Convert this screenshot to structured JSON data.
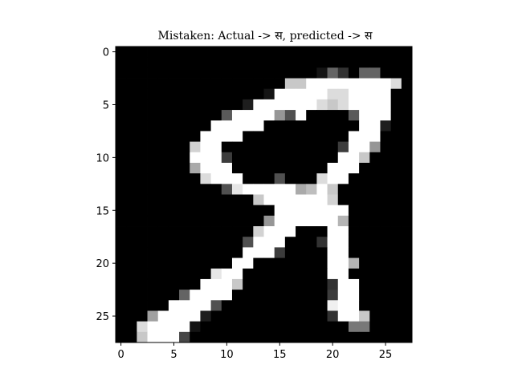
{
  "chart_data": {
    "type": "heatmap",
    "title": "Mistaken: Actual -> स, predicted -> स",
    "colormap": "gray",
    "rows": 28,
    "cols": 28,
    "xlim": [
      -0.5,
      27.5
    ],
    "ylim": [
      27.5,
      -0.5
    ],
    "x_ticks": [
      0,
      5,
      10,
      15,
      20,
      25
    ],
    "y_ticks": [
      0,
      5,
      10,
      15,
      20,
      25
    ],
    "grid": false,
    "pixels": [
      [
        0,
        0,
        0,
        0,
        0,
        0,
        0,
        0,
        0,
        0,
        0,
        0,
        0,
        0,
        0,
        0,
        0,
        0,
        0,
        0,
        0,
        0,
        0,
        0,
        0,
        0,
        0,
        0
      ],
      [
        0,
        0,
        0,
        0,
        0,
        0,
        0,
        0,
        0,
        0,
        0,
        0,
        0,
        0,
        0,
        0,
        0,
        0,
        0,
        0,
        0,
        0,
        0,
        0,
        0,
        0,
        0,
        0
      ],
      [
        0,
        0,
        0,
        0,
        0,
        0,
        0,
        0,
        0,
        0,
        0,
        0,
        0,
        0,
        0,
        0,
        0,
        0,
        0,
        20,
        100,
        50,
        0,
        100,
        100,
        0,
        0,
        0
      ],
      [
        0,
        0,
        0,
        0,
        0,
        0,
        0,
        0,
        0,
        0,
        0,
        0,
        0,
        0,
        0,
        0,
        200,
        200,
        255,
        255,
        255,
        255,
        255,
        255,
        255,
        255,
        220,
        0
      ],
      [
        0,
        0,
        0,
        0,
        0,
        0,
        0,
        0,
        0,
        0,
        0,
        0,
        0,
        0,
        20,
        255,
        255,
        255,
        255,
        255,
        220,
        220,
        255,
        255,
        255,
        255,
        0,
        0
      ],
      [
        0,
        0,
        0,
        0,
        0,
        0,
        0,
        0,
        0,
        0,
        0,
        0,
        30,
        255,
        255,
        255,
        255,
        255,
        255,
        220,
        200,
        220,
        255,
        255,
        255,
        255,
        0,
        0
      ],
      [
        0,
        0,
        0,
        0,
        0,
        0,
        0,
        0,
        0,
        0,
        90,
        255,
        255,
        255,
        255,
        150,
        80,
        255,
        0,
        0,
        0,
        0,
        90,
        255,
        255,
        255,
        0,
        0
      ],
      [
        0,
        0,
        0,
        0,
        0,
        0,
        0,
        0,
        0,
        255,
        255,
        255,
        255,
        255,
        0,
        0,
        0,
        0,
        0,
        0,
        0,
        0,
        0,
        255,
        255,
        30,
        0,
        0
      ],
      [
        0,
        0,
        0,
        0,
        0,
        0,
        0,
        0,
        255,
        255,
        255,
        255,
        0,
        0,
        0,
        0,
        0,
        0,
        0,
        0,
        0,
        0,
        255,
        255,
        255,
        0,
        0,
        0
      ],
      [
        0,
        0,
        0,
        0,
        0,
        0,
        0,
        210,
        255,
        255,
        0,
        0,
        0,
        0,
        0,
        0,
        0,
        0,
        0,
        0,
        0,
        60,
        255,
        255,
        150,
        0,
        0,
        0
      ],
      [
        0,
        0,
        0,
        0,
        0,
        0,
        0,
        255,
        255,
        255,
        60,
        0,
        0,
        0,
        0,
        0,
        0,
        0,
        0,
        0,
        0,
        255,
        255,
        200,
        0,
        0,
        0,
        0
      ],
      [
        0,
        0,
        0,
        0,
        0,
        0,
        0,
        170,
        255,
        255,
        255,
        0,
        0,
        0,
        0,
        0,
        0,
        0,
        0,
        0,
        255,
        255,
        255,
        0,
        0,
        0,
        0,
        0
      ],
      [
        0,
        0,
        0,
        0,
        0,
        0,
        0,
        0,
        220,
        255,
        255,
        255,
        0,
        0,
        0,
        80,
        0,
        0,
        0,
        220,
        255,
        255,
        0,
        0,
        0,
        0,
        0,
        0
      ],
      [
        0,
        0,
        0,
        0,
        0,
        0,
        0,
        0,
        0,
        0,
        80,
        230,
        255,
        255,
        255,
        255,
        255,
        170,
        190,
        255,
        200,
        0,
        0,
        0,
        0,
        0,
        0,
        0
      ],
      [
        0,
        0,
        0,
        0,
        0,
        0,
        0,
        0,
        0,
        0,
        0,
        0,
        0,
        200,
        255,
        255,
        255,
        255,
        255,
        255,
        210,
        0,
        0,
        0,
        0,
        0,
        0,
        0
      ],
      [
        0,
        0,
        0,
        0,
        0,
        0,
        0,
        0,
        0,
        0,
        0,
        0,
        0,
        0,
        0,
        255,
        255,
        255,
        255,
        255,
        255,
        255,
        0,
        0,
        0,
        0,
        0,
        0
      ],
      [
        0,
        0,
        0,
        0,
        0,
        0,
        0,
        0,
        0,
        0,
        0,
        0,
        0,
        0,
        150,
        255,
        255,
        255,
        255,
        255,
        255,
        180,
        0,
        0,
        0,
        0,
        0,
        0
      ],
      [
        0,
        0,
        0,
        0,
        0,
        0,
        0,
        0,
        0,
        0,
        0,
        0,
        0,
        210,
        255,
        255,
        255,
        0,
        0,
        0,
        255,
        255,
        0,
        0,
        0,
        0,
        0,
        0
      ],
      [
        0,
        0,
        0,
        0,
        0,
        0,
        0,
        0,
        0,
        0,
        0,
        0,
        80,
        255,
        255,
        255,
        0,
        0,
        0,
        50,
        255,
        255,
        0,
        0,
        0,
        0,
        0,
        0
      ],
      [
        0,
        0,
        0,
        0,
        0,
        0,
        0,
        0,
        0,
        0,
        0,
        0,
        255,
        255,
        255,
        60,
        0,
        0,
        0,
        0,
        255,
        255,
        0,
        0,
        0,
        0,
        0,
        0
      ],
      [
        0,
        0,
        0,
        0,
        0,
        0,
        0,
        0,
        0,
        0,
        0,
        255,
        255,
        0,
        0,
        0,
        0,
        0,
        0,
        0,
        255,
        255,
        180,
        0,
        0,
        0,
        0,
        0
      ],
      [
        0,
        0,
        0,
        0,
        0,
        0,
        0,
        0,
        0,
        230,
        255,
        255,
        0,
        0,
        0,
        0,
        0,
        0,
        0,
        0,
        255,
        255,
        0,
        0,
        0,
        0,
        0,
        0
      ],
      [
        0,
        0,
        0,
        0,
        0,
        0,
        0,
        0,
        255,
        255,
        255,
        200,
        0,
        0,
        0,
        0,
        0,
        0,
        0,
        0,
        50,
        255,
        255,
        0,
        0,
        0,
        0,
        0
      ],
      [
        0,
        0,
        0,
        0,
        0,
        0,
        100,
        255,
        255,
        255,
        255,
        0,
        0,
        0,
        0,
        0,
        0,
        0,
        0,
        0,
        60,
        255,
        255,
        0,
        0,
        0,
        0,
        0
      ],
      [
        0,
        0,
        0,
        0,
        0,
        255,
        255,
        255,
        255,
        80,
        0,
        0,
        0,
        0,
        0,
        0,
        0,
        0,
        0,
        0,
        240,
        255,
        255,
        0,
        0,
        0,
        0,
        0
      ],
      [
        0,
        0,
        0,
        160,
        255,
        255,
        255,
        255,
        30,
        0,
        0,
        0,
        0,
        0,
        0,
        0,
        0,
        0,
        0,
        0,
        50,
        255,
        255,
        200,
        0,
        0,
        0,
        0
      ],
      [
        0,
        0,
        220,
        255,
        255,
        255,
        255,
        20,
        0,
        0,
        0,
        0,
        0,
        0,
        0,
        0,
        0,
        0,
        0,
        0,
        0,
        0,
        120,
        120,
        0,
        0,
        0,
        0
      ],
      [
        0,
        0,
        200,
        255,
        255,
        255,
        70,
        0,
        0,
        0,
        0,
        0,
        0,
        0,
        0,
        0,
        0,
        0,
        0,
        0,
        0,
        0,
        0,
        0,
        0,
        0,
        0,
        0
      ]
    ]
  }
}
